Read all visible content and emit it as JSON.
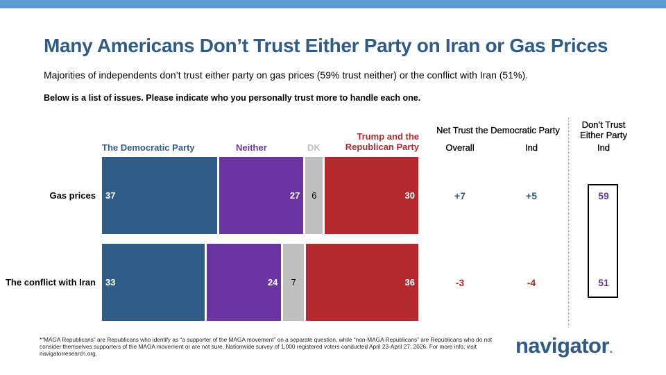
{
  "title": "Many Americans Don’t Trust Either Party on Iran or Gas Prices",
  "subtitle": "Majorities of independents don’t trust either party on gas prices (59% trust neither) or the conflict with Iran (51%).",
  "question": "Below is a list of issues. Please indicate who you personally trust more to handle each one.",
  "headers": {
    "net": "Net Trust the Democratic Party",
    "overall": "Overall",
    "ind": "Ind",
    "dont_trust": "Don’t Trust Either Party",
    "dont_trust_ind": "Ind"
  },
  "chart_data": {
    "type": "bar",
    "stacked": true,
    "orientation": "horizontal",
    "categories": [
      "Gas prices",
      "The conflict with Iran"
    ],
    "series": [
      {
        "name": "The Democratic Party",
        "color": "#305d88",
        "values": [
          37,
          33
        ]
      },
      {
        "name": "Neither",
        "color": "#6a35a0",
        "values": [
          27,
          24
        ]
      },
      {
        "name": "DK",
        "color": "#bfbfbf",
        "values": [
          6,
          7
        ]
      },
      {
        "name": "Trump and the Republican Party",
        "color": "#b5282e",
        "values": [
          30,
          36
        ]
      }
    ]
  },
  "net_overall": [
    "+7",
    "-3"
  ],
  "net_ind": [
    "+5",
    "-4"
  ],
  "dont_trust_ind": [
    "59",
    "51"
  ],
  "footnote": "*“MAGA Republicans” are Republicans who identify as “a supporter of the MAGA movement” on a separate question, while “non-MAGA Republicans” are Republicans who do not consider themselves supporters of the MAGA movement or are not sure. Nationwide survey of 1,000 registered voters conducted April 23-April 27, 2026. For more info, visit navigatorresearch.org.",
  "logo": "navigator",
  "colors": {
    "positive": "#305d88",
    "negative": "#b5282e",
    "neither": "#6a35a0"
  }
}
